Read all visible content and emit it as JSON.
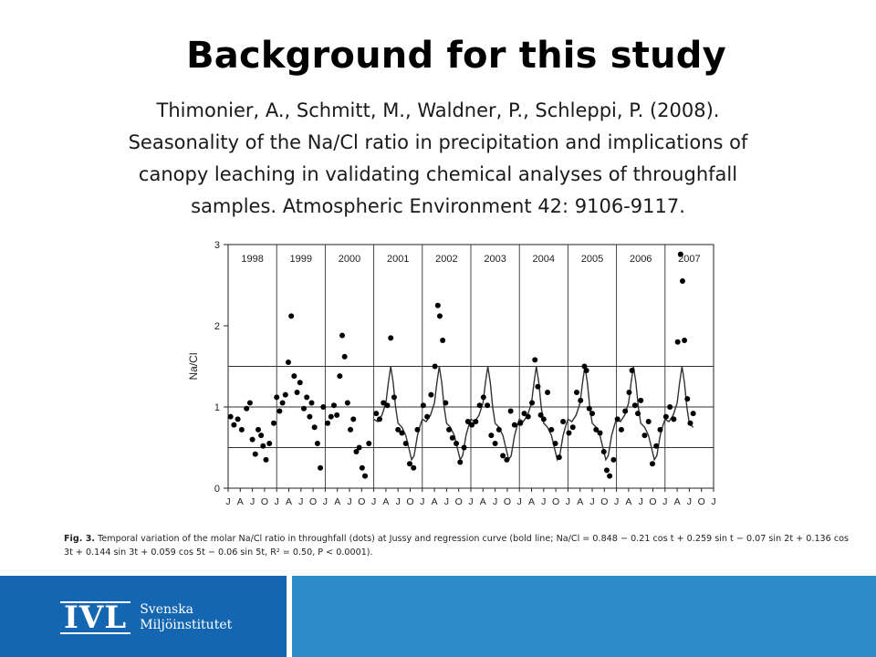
{
  "slide": {
    "title": "Background for this study",
    "citation_lines": [
      "Thimonier, A., Schmitt, M., Waldner, P., Schleppi, P. (2008).",
      "Seasonality of the Na/Cl ratio in precipitation and implications of",
      "canopy leaching in validating chemical analyses of throughfall",
      "samples. Atmospheric Environment 42: 9106-9117."
    ],
    "caption_label": "Fig. 3.",
    "caption_text": "Temporal variation of the molar Na/Cl ratio in throughfall (dots) at Jussy and regression curve (bold line; Na/Cl = 0.848 − 0.21 cos t + 0.259 sin t − 0.07 sin 2t + 0.136 cos 3t + 0.144 sin 3t + 0.059 cos 5t − 0.06 sin 5t, R² = 0.50, P < 0.0001).",
    "logo": {
      "mark": "IVL",
      "line1": "Svenska",
      "line2": "Miljöinstitutet"
    },
    "colors": {
      "footer_left": "#1466b0",
      "footer_right": "#2c8ccb"
    }
  },
  "chart_data": {
    "type": "scatter",
    "title": "",
    "xlabel": "",
    "ylabel": "Na/Cl",
    "ylim": [
      0,
      3
    ],
    "yticks": [
      0,
      1,
      2,
      3
    ],
    "reference_lines": [
      0.5,
      1,
      1.5
    ],
    "x_tick_labels": [
      "J",
      "A",
      "J",
      "O",
      "J",
      "A",
      "J",
      "O",
      "J",
      "A",
      "J",
      "O",
      "J",
      "A",
      "J",
      "O",
      "J",
      "A",
      "J",
      "O",
      "J",
      "A",
      "J",
      "O",
      "J",
      "A",
      "J",
      "O",
      "J",
      "A",
      "J",
      "O",
      "J",
      "A",
      "J",
      "O",
      "J",
      "A",
      "J",
      "O",
      "J"
    ],
    "years": [
      "1998",
      "1999",
      "2000",
      "2001",
      "2002",
      "2003",
      "2004",
      "2005",
      "2006",
      "2007"
    ],
    "x_range": [
      1998.0,
      2008.0
    ],
    "series": [
      {
        "kind": "regression",
        "points": [
          [
            2001.0,
            0.85
          ],
          [
            2001.08,
            0.82
          ],
          [
            2001.17,
            0.9
          ],
          [
            2001.25,
            1.05
          ],
          [
            2001.3,
            1.3
          ],
          [
            2001.35,
            1.5
          ],
          [
            2001.4,
            1.3
          ],
          [
            2001.45,
            1.0
          ],
          [
            2001.5,
            0.8
          ],
          [
            2001.58,
            0.75
          ],
          [
            2001.66,
            0.65
          ],
          [
            2001.72,
            0.5
          ],
          [
            2001.78,
            0.35
          ],
          [
            2001.83,
            0.4
          ],
          [
            2001.9,
            0.65
          ],
          [
            2001.96,
            0.78
          ],
          [
            2002.0,
            0.85
          ],
          [
            2002.08,
            0.82
          ],
          [
            2002.17,
            0.9
          ],
          [
            2002.25,
            1.05
          ],
          [
            2002.3,
            1.3
          ],
          [
            2002.35,
            1.5
          ],
          [
            2002.4,
            1.3
          ],
          [
            2002.45,
            1.0
          ],
          [
            2002.5,
            0.8
          ],
          [
            2002.58,
            0.75
          ],
          [
            2002.66,
            0.65
          ],
          [
            2002.72,
            0.5
          ],
          [
            2002.78,
            0.35
          ],
          [
            2002.83,
            0.4
          ],
          [
            2002.9,
            0.65
          ],
          [
            2002.96,
            0.78
          ],
          [
            2003.0,
            0.85
          ],
          [
            2003.08,
            0.82
          ],
          [
            2003.17,
            0.9
          ],
          [
            2003.25,
            1.05
          ],
          [
            2003.3,
            1.3
          ],
          [
            2003.35,
            1.5
          ],
          [
            2003.4,
            1.3
          ],
          [
            2003.45,
            1.0
          ],
          [
            2003.5,
            0.8
          ],
          [
            2003.58,
            0.75
          ],
          [
            2003.66,
            0.65
          ],
          [
            2003.72,
            0.5
          ],
          [
            2003.78,
            0.35
          ],
          [
            2003.83,
            0.4
          ],
          [
            2003.9,
            0.65
          ],
          [
            2003.96,
            0.78
          ],
          [
            2004.0,
            0.85
          ],
          [
            2004.08,
            0.82
          ],
          [
            2004.17,
            0.9
          ],
          [
            2004.25,
            1.05
          ],
          [
            2004.3,
            1.3
          ],
          [
            2004.35,
            1.5
          ],
          [
            2004.4,
            1.3
          ],
          [
            2004.45,
            1.0
          ],
          [
            2004.5,
            0.8
          ],
          [
            2004.58,
            0.75
          ],
          [
            2004.66,
            0.65
          ],
          [
            2004.72,
            0.5
          ],
          [
            2004.78,
            0.35
          ],
          [
            2004.83,
            0.4
          ],
          [
            2004.9,
            0.65
          ],
          [
            2004.96,
            0.78
          ],
          [
            2005.0,
            0.85
          ],
          [
            2005.08,
            0.82
          ],
          [
            2005.17,
            0.9
          ],
          [
            2005.25,
            1.05
          ],
          [
            2005.3,
            1.3
          ],
          [
            2005.35,
            1.5
          ],
          [
            2005.4,
            1.3
          ],
          [
            2005.45,
            1.0
          ],
          [
            2005.5,
            0.8
          ],
          [
            2005.58,
            0.75
          ],
          [
            2005.66,
            0.65
          ],
          [
            2005.72,
            0.5
          ],
          [
            2005.78,
            0.35
          ],
          [
            2005.83,
            0.4
          ],
          [
            2005.9,
            0.65
          ],
          [
            2005.96,
            0.78
          ],
          [
            2006.0,
            0.85
          ],
          [
            2006.08,
            0.82
          ],
          [
            2006.17,
            0.9
          ],
          [
            2006.25,
            1.05
          ],
          [
            2006.3,
            1.3
          ],
          [
            2006.35,
            1.5
          ],
          [
            2006.4,
            1.3
          ],
          [
            2006.45,
            1.0
          ],
          [
            2006.5,
            0.8
          ],
          [
            2006.58,
            0.75
          ],
          [
            2006.66,
            0.65
          ],
          [
            2006.72,
            0.5
          ],
          [
            2006.78,
            0.35
          ],
          [
            2006.83,
            0.4
          ],
          [
            2006.9,
            0.65
          ],
          [
            2006.96,
            0.78
          ],
          [
            2007.0,
            0.85
          ],
          [
            2007.08,
            0.82
          ],
          [
            2007.17,
            0.9
          ],
          [
            2007.25,
            1.05
          ],
          [
            2007.3,
            1.3
          ],
          [
            2007.35,
            1.5
          ],
          [
            2007.4,
            1.3
          ],
          [
            2007.45,
            1.0
          ],
          [
            2007.5,
            0.8
          ],
          [
            2007.58,
            0.75
          ]
        ]
      },
      {
        "kind": "observations",
        "points": [
          [
            1998.05,
            0.88
          ],
          [
            1998.12,
            0.78
          ],
          [
            1998.2,
            0.85
          ],
          [
            1998.28,
            0.72
          ],
          [
            1998.38,
            0.98
          ],
          [
            1998.45,
            1.05
          ],
          [
            1998.5,
            0.6
          ],
          [
            1998.56,
            0.42
          ],
          [
            1998.62,
            0.72
          ],
          [
            1998.68,
            0.65
          ],
          [
            1998.72,
            0.52
          ],
          [
            1998.78,
            0.35
          ],
          [
            1998.85,
            0.55
          ],
          [
            1998.94,
            0.8
          ],
          [
            1999.0,
            1.12
          ],
          [
            1999.06,
            0.95
          ],
          [
            1999.12,
            1.05
          ],
          [
            1999.18,
            1.15
          ],
          [
            1999.24,
            1.55
          ],
          [
            1999.3,
            2.12
          ],
          [
            1999.36,
            1.38
          ],
          [
            1999.42,
            1.18
          ],
          [
            1999.48,
            1.3
          ],
          [
            1999.56,
            0.98
          ],
          [
            1999.62,
            1.12
          ],
          [
            1999.68,
            0.88
          ],
          [
            1999.72,
            1.05
          ],
          [
            1999.78,
            0.75
          ],
          [
            1999.84,
            0.55
          ],
          [
            1999.9,
            0.25
          ],
          [
            1999.96,
            1.0
          ],
          [
            2000.05,
            0.8
          ],
          [
            2000.12,
            0.88
          ],
          [
            2000.18,
            1.02
          ],
          [
            2000.24,
            0.9
          ],
          [
            2000.3,
            1.38
          ],
          [
            2000.35,
            1.88
          ],
          [
            2000.4,
            1.62
          ],
          [
            2000.46,
            1.05
          ],
          [
            2000.52,
            0.72
          ],
          [
            2000.58,
            0.85
          ],
          [
            2000.64,
            0.45
          ],
          [
            2000.7,
            0.5
          ],
          [
            2000.76,
            0.25
          ],
          [
            2000.82,
            0.15
          ],
          [
            2000.9,
            0.55
          ],
          [
            2001.05,
            0.92
          ],
          [
            2001.12,
            0.85
          ],
          [
            2001.2,
            1.05
          ],
          [
            2001.28,
            1.02
          ],
          [
            2001.35,
            1.85
          ],
          [
            2001.42,
            1.12
          ],
          [
            2001.5,
            0.72
          ],
          [
            2001.58,
            0.68
          ],
          [
            2001.66,
            0.55
          ],
          [
            2001.74,
            0.3
          ],
          [
            2001.82,
            0.25
          ],
          [
            2001.9,
            0.72
          ],
          [
            2002.02,
            1.02
          ],
          [
            2002.1,
            0.88
          ],
          [
            2002.18,
            1.15
          ],
          [
            2002.26,
            1.5
          ],
          [
            2002.32,
            2.25
          ],
          [
            2002.36,
            2.12
          ],
          [
            2002.42,
            1.82
          ],
          [
            2002.48,
            1.05
          ],
          [
            2002.55,
            0.72
          ],
          [
            2002.62,
            0.62
          ],
          [
            2002.7,
            0.55
          ],
          [
            2002.78,
            0.32
          ],
          [
            2002.86,
            0.5
          ],
          [
            2002.94,
            0.82
          ],
          [
            2003.02,
            0.78
          ],
          [
            2003.1,
            0.82
          ],
          [
            2003.18,
            1.02
          ],
          [
            2003.26,
            1.12
          ],
          [
            2003.34,
            1.02
          ],
          [
            2003.42,
            0.65
          ],
          [
            2003.5,
            0.55
          ],
          [
            2003.58,
            0.72
          ],
          [
            2003.66,
            0.4
          ],
          [
            2003.74,
            0.35
          ],
          [
            2003.82,
            0.95
          ],
          [
            2003.9,
            0.78
          ],
          [
            2004.02,
            0.8
          ],
          [
            2004.1,
            0.92
          ],
          [
            2004.18,
            0.88
          ],
          [
            2004.26,
            1.05
          ],
          [
            2004.32,
            1.58
          ],
          [
            2004.38,
            1.25
          ],
          [
            2004.44,
            0.9
          ],
          [
            2004.5,
            0.85
          ],
          [
            2004.58,
            1.18
          ],
          [
            2004.66,
            0.72
          ],
          [
            2004.74,
            0.55
          ],
          [
            2004.82,
            0.38
          ],
          [
            2004.9,
            0.82
          ],
          [
            2005.02,
            0.68
          ],
          [
            2005.1,
            0.75
          ],
          [
            2005.18,
            1.18
          ],
          [
            2005.26,
            1.08
          ],
          [
            2005.34,
            1.5
          ],
          [
            2005.38,
            1.45
          ],
          [
            2005.44,
            0.98
          ],
          [
            2005.5,
            0.92
          ],
          [
            2005.58,
            0.72
          ],
          [
            2005.66,
            0.68
          ],
          [
            2005.74,
            0.45
          ],
          [
            2005.8,
            0.22
          ],
          [
            2005.86,
            0.15
          ],
          [
            2005.94,
            0.35
          ],
          [
            2006.02,
            0.85
          ],
          [
            2006.1,
            0.72
          ],
          [
            2006.18,
            0.95
          ],
          [
            2006.26,
            1.18
          ],
          [
            2006.32,
            1.45
          ],
          [
            2006.38,
            1.02
          ],
          [
            2006.44,
            0.92
          ],
          [
            2006.5,
            1.08
          ],
          [
            2006.58,
            0.65
          ],
          [
            2006.66,
            0.82
          ],
          [
            2006.74,
            0.3
          ],
          [
            2006.82,
            0.52
          ],
          [
            2006.9,
            0.72
          ],
          [
            2007.02,
            0.88
          ],
          [
            2007.1,
            1.0
          ],
          [
            2007.18,
            0.85
          ],
          [
            2007.26,
            1.8
          ],
          [
            2007.32,
            2.88
          ],
          [
            2007.36,
            2.55
          ],
          [
            2007.4,
            1.82
          ],
          [
            2007.46,
            1.1
          ],
          [
            2007.52,
            0.8
          ],
          [
            2007.58,
            0.92
          ]
        ]
      }
    ]
  }
}
